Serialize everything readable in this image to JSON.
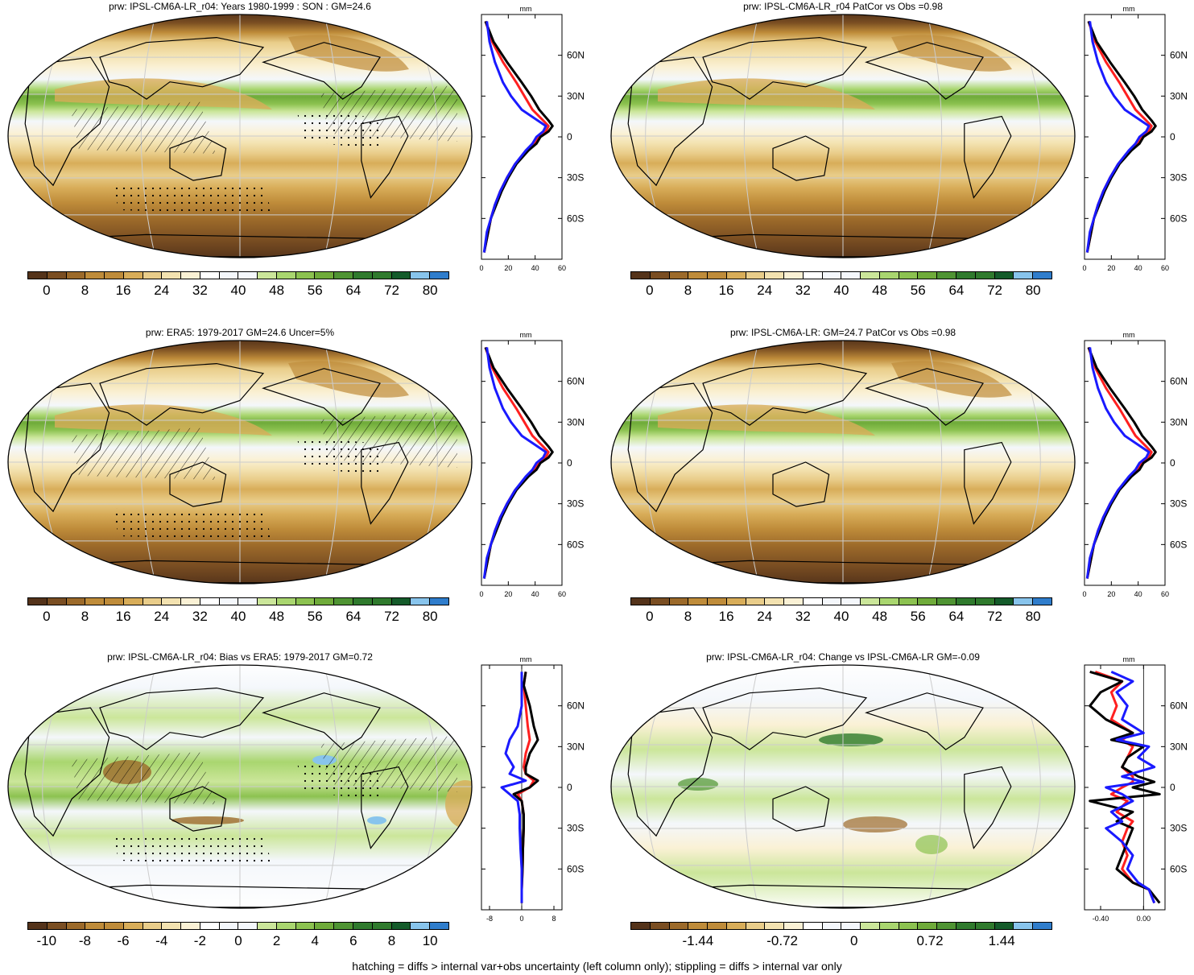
{
  "panels": [
    {
      "title": "prw: IPSL-CM6A-LR_r04: Years 1980-1999 : SON : GM=24.6",
      "kind": "abs",
      "hatch": true,
      "colorbar": {
        "labels": [
          "0",
          "8",
          "16",
          "24",
          "32",
          "40",
          "48",
          "56",
          "64",
          "72",
          "80"
        ]
      }
    },
    {
      "title": "prw: IPSL-CM6A-LR_r04 PatCor vs Obs =0.98",
      "kind": "abs",
      "hatch": false,
      "colorbar": {
        "labels": [
          "0",
          "8",
          "16",
          "24",
          "32",
          "40",
          "48",
          "56",
          "64",
          "72",
          "80"
        ]
      }
    },
    {
      "title": "prw: ERA5: 1979-2017 GM=24.6 Uncer=5%",
      "kind": "abs",
      "hatch": true,
      "colorbar": {
        "labels": [
          "0",
          "8",
          "16",
          "24",
          "32",
          "40",
          "48",
          "56",
          "64",
          "72",
          "80"
        ]
      }
    },
    {
      "title": "prw: IPSL-CM6A-LR: GM=24.7 PatCor vs Obs =0.98",
      "kind": "abs",
      "hatch": false,
      "colorbar": {
        "labels": [
          "0",
          "8",
          "16",
          "24",
          "32",
          "40",
          "48",
          "56",
          "64",
          "72",
          "80"
        ]
      }
    },
    {
      "title": "prw: IPSL-CM6A-LR_r04: Bias vs ERA5: 1979-2017  GM=0.72",
      "kind": "bias",
      "hatch": true,
      "colorbar": {
        "labels": [
          "-10",
          "-8",
          "-6",
          "-4",
          "-2",
          "0",
          "2",
          "4",
          "6",
          "8",
          "10"
        ]
      }
    },
    {
      "title": "prw: IPSL-CM6A-LR_r04: Change vs IPSL-CM6A-LR GM=-0.09",
      "kind": "change",
      "hatch": false,
      "colorbar": {
        "labels": [
          "-1.44",
          "-0.72",
          "0",
          "0.72",
          "1.44"
        ]
      }
    }
  ],
  "colors": {
    "palette": [
      "#54331a",
      "#7a4e22",
      "#9c6a2a",
      "#bf8c3a",
      "#d8ad59",
      "#e9cd8a",
      "#f3e2b0",
      "#faf1d5",
      "#ffffff",
      "#f4f7fb",
      "#cbe69a",
      "#a9d66f",
      "#8cc250",
      "#6fab3a",
      "#4f9433",
      "#2f7a2d",
      "#145b2a",
      "#88c4ec",
      "#2f7dcc"
    ],
    "model_line": "#000000",
    "obs_line": "#ff2020",
    "model2_line": "#1a1aff"
  },
  "chart_data": [
    {
      "type": "line",
      "panel": 1,
      "ylabel": "mm",
      "ytick_labels": [
        "60N",
        "30N",
        "0",
        "30S",
        "60S"
      ],
      "xtick_labels": [
        "0",
        "20",
        "40",
        "60"
      ],
      "xlim": [
        0,
        60
      ],
      "ylim": [
        -90,
        90
      ],
      "series": [
        {
          "lat": [
            85,
            70,
            55,
            40,
            30,
            20,
            12,
            8,
            4,
            0,
            -5,
            -10,
            -20,
            -30,
            -40,
            -50,
            -60,
            -70,
            -85
          ],
          "values": [
            3,
            8,
            16,
            26,
            32,
            38,
            46,
            50,
            48,
            42,
            40,
            34,
            25,
            19,
            14,
            10,
            7,
            5,
            2
          ]
        },
        {
          "lat": [
            85,
            70,
            55,
            40,
            30,
            20,
            12,
            8,
            4,
            0,
            -5,
            -10,
            -20,
            -30,
            -40,
            -50,
            -60,
            -70,
            -85
          ],
          "values": [
            4,
            6,
            10,
            16,
            22,
            30,
            42,
            48,
            46,
            41,
            38,
            33,
            25,
            19,
            14,
            10,
            7,
            4,
            2
          ]
        },
        {
          "lat": [
            85,
            70,
            55,
            40,
            30,
            20,
            12,
            8,
            4,
            0,
            -5,
            -10,
            -20,
            -30,
            -40,
            -50,
            -60,
            -70,
            -85
          ],
          "values": [
            3,
            9,
            19,
            30,
            37,
            43,
            50,
            53,
            50,
            44,
            41,
            35,
            26,
            20,
            15,
            11,
            7,
            5,
            2
          ]
        }
      ]
    },
    {
      "type": "line",
      "panel": 2,
      "ylabel": "mm",
      "ytick_labels": [
        "60N",
        "30N",
        "0",
        "30S",
        "60S"
      ],
      "xtick_labels": [
        "0",
        "20",
        "40",
        "60"
      ],
      "xlim": [
        0,
        60
      ],
      "ylim": [
        -90,
        90
      ],
      "series": [
        {
          "lat": [
            85,
            70,
            55,
            40,
            30,
            20,
            12,
            8,
            4,
            0,
            -5,
            -10,
            -20,
            -30,
            -40,
            -50,
            -60,
            -70,
            -85
          ],
          "values": [
            3,
            8,
            16,
            26,
            32,
            38,
            46,
            50,
            48,
            42,
            40,
            34,
            25,
            19,
            14,
            10,
            7,
            5,
            2
          ]
        },
        {
          "lat": [
            85,
            70,
            55,
            40,
            30,
            20,
            12,
            8,
            4,
            0,
            -5,
            -10,
            -20,
            -30,
            -40,
            -50,
            -60,
            -70,
            -85
          ],
          "values": [
            4,
            6,
            10,
            16,
            22,
            30,
            42,
            48,
            46,
            41,
            38,
            33,
            25,
            19,
            14,
            10,
            7,
            4,
            2
          ]
        },
        {
          "lat": [
            85,
            70,
            55,
            40,
            30,
            20,
            12,
            8,
            4,
            0,
            -5,
            -10,
            -20,
            -30,
            -40,
            -50,
            -60,
            -70,
            -85
          ],
          "values": [
            3,
            9,
            19,
            30,
            37,
            43,
            50,
            53,
            50,
            44,
            41,
            35,
            26,
            20,
            15,
            11,
            7,
            5,
            2
          ]
        }
      ]
    },
    {
      "type": "line",
      "panel": 3,
      "ylabel": "mm",
      "ytick_labels": [
        "60N",
        "30N",
        "0",
        "30S",
        "60S"
      ],
      "xtick_labels": [
        "0",
        "20",
        "40",
        "60"
      ],
      "xlim": [
        0,
        60
      ],
      "ylim": [
        -90,
        90
      ],
      "series": [
        {
          "lat": [
            85,
            70,
            55,
            40,
            30,
            20,
            12,
            8,
            4,
            0,
            -5,
            -10,
            -20,
            -30,
            -40,
            -50,
            -60,
            -70,
            -85
          ],
          "values": [
            3,
            8,
            16,
            26,
            32,
            38,
            46,
            50,
            48,
            42,
            40,
            34,
            25,
            19,
            14,
            10,
            7,
            5,
            2
          ]
        },
        {
          "lat": [
            85,
            70,
            55,
            40,
            30,
            20,
            12,
            8,
            4,
            0,
            -5,
            -10,
            -20,
            -30,
            -40,
            -50,
            -60,
            -70,
            -85
          ],
          "values": [
            4,
            6,
            10,
            16,
            22,
            30,
            42,
            48,
            46,
            41,
            38,
            33,
            25,
            19,
            14,
            10,
            7,
            4,
            2
          ]
        },
        {
          "lat": [
            85,
            70,
            55,
            40,
            30,
            20,
            12,
            8,
            4,
            0,
            -5,
            -10,
            -20,
            -30,
            -40,
            -50,
            -60,
            -70,
            -85
          ],
          "values": [
            3,
            9,
            19,
            30,
            37,
            43,
            50,
            53,
            50,
            44,
            41,
            35,
            26,
            20,
            15,
            11,
            7,
            5,
            2
          ]
        }
      ]
    },
    {
      "type": "line",
      "panel": 4,
      "ylabel": "mm",
      "ytick_labels": [
        "60N",
        "30N",
        "0",
        "30S",
        "60S"
      ],
      "xtick_labels": [
        "0",
        "20",
        "40",
        "60"
      ],
      "xlim": [
        0,
        60
      ],
      "ylim": [
        -90,
        90
      ],
      "series": [
        {
          "lat": [
            85,
            70,
            55,
            40,
            30,
            20,
            12,
            8,
            4,
            0,
            -5,
            -10,
            -20,
            -30,
            -40,
            -50,
            -60,
            -70,
            -85
          ],
          "values": [
            3,
            8,
            16,
            26,
            32,
            38,
            46,
            50,
            48,
            42,
            40,
            34,
            25,
            19,
            14,
            10,
            7,
            5,
            2
          ]
        },
        {
          "lat": [
            85,
            70,
            55,
            40,
            30,
            20,
            12,
            8,
            4,
            0,
            -5,
            -10,
            -20,
            -30,
            -40,
            -50,
            -60,
            -70,
            -85
          ],
          "values": [
            4,
            6,
            10,
            16,
            22,
            30,
            42,
            48,
            46,
            41,
            38,
            33,
            25,
            19,
            14,
            10,
            7,
            4,
            2
          ]
        },
        {
          "lat": [
            85,
            70,
            55,
            40,
            30,
            20,
            12,
            8,
            4,
            0,
            -5,
            -10,
            -20,
            -30,
            -40,
            -50,
            -60,
            -70,
            -85
          ],
          "values": [
            3,
            9,
            19,
            30,
            37,
            43,
            50,
            53,
            50,
            44,
            41,
            35,
            26,
            20,
            15,
            11,
            7,
            5,
            2
          ]
        }
      ]
    },
    {
      "type": "line",
      "panel": 5,
      "ylabel": "mm",
      "ytick_labels": [
        "60N",
        "30N",
        "0",
        "30S",
        "60S"
      ],
      "xtick_labels": [
        "-8",
        "0",
        "8"
      ],
      "xlim": [
        -10,
        10
      ],
      "ylim": [
        -90,
        90
      ],
      "series": [
        {
          "lat": [
            85,
            75,
            60,
            45,
            35,
            25,
            15,
            10,
            5,
            0,
            -5,
            -10,
            -20,
            -30,
            -45,
            -60,
            -75,
            -85
          ],
          "values": [
            1,
            0.5,
            1,
            1.5,
            2,
            1,
            0.5,
            1,
            3,
            2,
            -1,
            0,
            0.5,
            0.5,
            0.3,
            0.2,
            0,
            0
          ]
        },
        {
          "lat": [
            85,
            75,
            60,
            45,
            35,
            25,
            15,
            10,
            5,
            0,
            -5,
            -10,
            -20,
            -30,
            -45,
            -60,
            -75,
            -85
          ],
          "values": [
            0,
            0,
            0,
            -1,
            -3,
            -4,
            -2,
            -3,
            1,
            -5,
            -3,
            -1,
            -0.5,
            -0.5,
            -0.3,
            0,
            0,
            0
          ]
        },
        {
          "lat": [
            85,
            75,
            60,
            45,
            35,
            25,
            15,
            10,
            5,
            0,
            -5,
            -10,
            -20,
            -30,
            -45,
            -60,
            -75,
            -85
          ],
          "values": [
            1,
            0.5,
            2,
            3,
            4,
            2,
            1,
            1,
            4,
            2,
            -2,
            0,
            0.5,
            0.5,
            0.3,
            0.2,
            0,
            0
          ]
        }
      ]
    },
    {
      "type": "line",
      "panel": 6,
      "ylabel": "mm",
      "ytick_labels": [
        "60N",
        "30N",
        "0",
        "30S",
        "60S"
      ],
      "xtick_labels": [
        "-0.40",
        "0.00"
      ],
      "xlim": [
        -0.55,
        0.2
      ],
      "ylim": [
        -90,
        90
      ],
      "series": [
        {
          "lat": [
            85,
            78,
            70,
            60,
            50,
            40,
            35,
            30,
            22,
            15,
            8,
            4,
            0,
            -5,
            -10,
            -18,
            -25,
            -30,
            -40,
            -50,
            -60,
            -70,
            -75,
            -85
          ],
          "values": [
            -0.45,
            -0.2,
            -0.3,
            -0.25,
            -0.3,
            -0.1,
            -0.2,
            -0.1,
            -0.15,
            -0.2,
            -0.1,
            -0.1,
            -0.2,
            -0.3,
            -0.15,
            -0.25,
            -0.1,
            -0.15,
            -0.2,
            -0.15,
            -0.2,
            -0.1,
            0.05,
            0.1
          ]
        },
        {
          "lat": [
            85,
            78,
            70,
            60,
            50,
            40,
            35,
            30,
            22,
            15,
            8,
            4,
            0,
            -5,
            -10,
            -18,
            -25,
            -30,
            -40,
            -50,
            -60,
            -70,
            -75,
            -85
          ],
          "values": [
            -0.3,
            -0.1,
            -0.25,
            -0.15,
            -0.2,
            0,
            -0.25,
            0.05,
            -0.05,
            0.1,
            -0.2,
            0,
            -0.35,
            -0.2,
            -0.1,
            -0.3,
            -0.2,
            -0.35,
            -0.2,
            -0.1,
            -0.15,
            -0.05,
            0.05,
            0.1
          ]
        },
        {
          "lat": [
            85,
            78,
            70,
            60,
            50,
            40,
            35,
            30,
            22,
            15,
            8,
            4,
            0,
            -5,
            -10,
            -18,
            -25,
            -30,
            -40,
            -50,
            -60,
            -70,
            -75,
            -85
          ],
          "values": [
            -0.5,
            -0.2,
            -0.4,
            -0.5,
            -0.35,
            -0.1,
            -0.3,
            0,
            -0.15,
            -0.2,
            -0.05,
            0.1,
            -0.1,
            0.15,
            -0.5,
            -0.1,
            -0.25,
            -0.1,
            -0.15,
            -0.2,
            -0.25,
            -0.1,
            0.05,
            0.15
          ]
        }
      ]
    }
  ],
  "footer": "hatching = diffs > internal var+obs uncertainty (left column only); stippling = diffs > internal var only"
}
